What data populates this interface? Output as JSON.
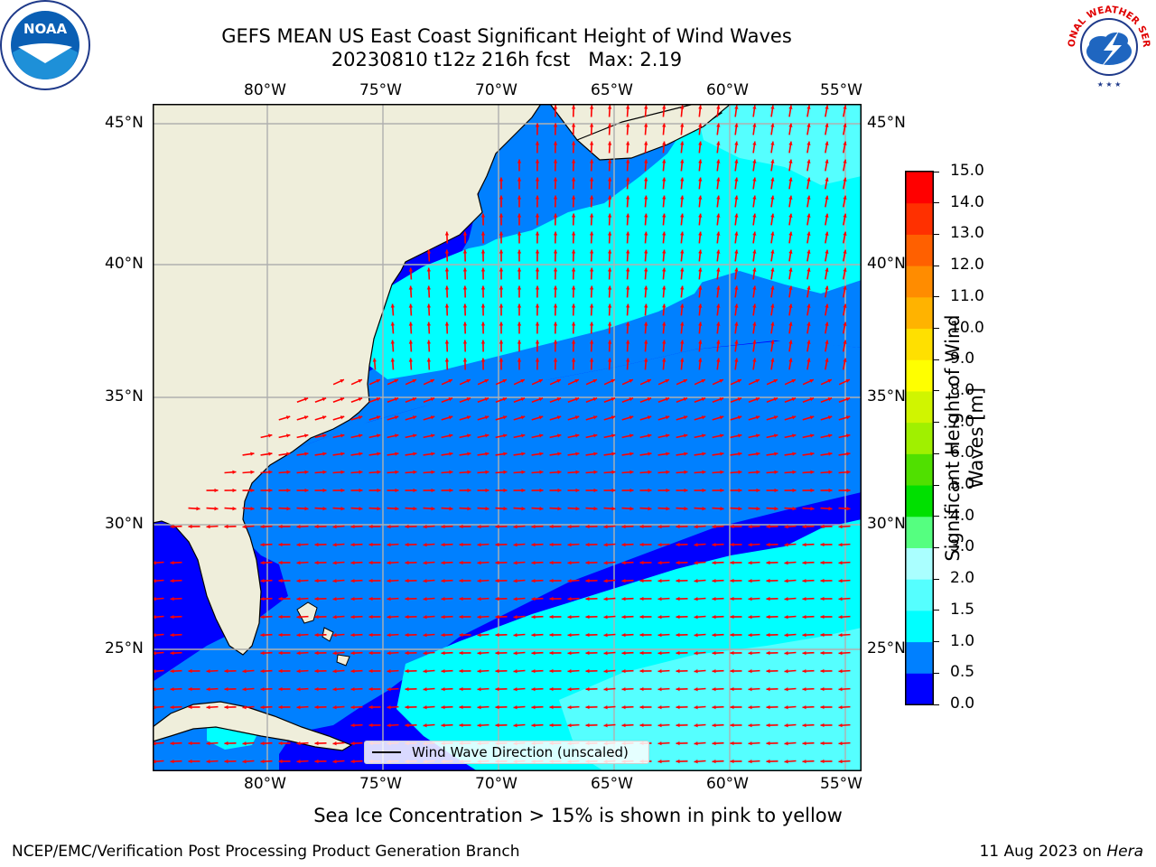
{
  "title_line1": "GEFS MEAN US East Coast Significant Height of Wind Waves",
  "title_line2": "20230810 t12z 216h fcst   Max: 2.19",
  "logos": {
    "left": "NOAA",
    "right": "NATIONAL WEATHER SERVICE"
  },
  "map": {
    "lon_labels": [
      "80°W",
      "75°W",
      "70°W",
      "65°W",
      "60°W",
      "55°W"
    ],
    "lat_labels": [
      "45°N",
      "40°N",
      "35°N",
      "30°N",
      "25°N"
    ],
    "extent": {
      "lon": [
        -85,
        -54.3
      ],
      "lat": [
        20.5,
        46
      ]
    },
    "land_color": "#efeedb",
    "grid_color": "#b0b0b0",
    "arrow_color": "#ff0000",
    "legend_label": "Wind Wave Direction (unscaled)"
  },
  "colorbar": {
    "title": "Significant Height of Wind Waves [m]",
    "ticks": [
      "0.0",
      "0.5",
      "1.0",
      "1.5",
      "2.0",
      "3.0",
      "4.0",
      "5.0",
      "6.0",
      "7.0",
      "8.0",
      "9.0",
      "10.0",
      "11.0",
      "12.0",
      "13.0",
      "14.0",
      "15.0"
    ],
    "colors": [
      "#0000ff",
      "#0080ff",
      "#00ffff",
      "#55ffff",
      "#aaffff",
      "#55ff80",
      "#00e000",
      "#50e000",
      "#a0f000",
      "#d0f500",
      "#ffff00",
      "#ffe000",
      "#ffb300",
      "#ff8c00",
      "#ff6000",
      "#ff3000",
      "#ff0000"
    ]
  },
  "caption": "Sea Ice Concentration > 15% is shown in pink to yellow",
  "credit": "NCEP/EMC/Verification Post Processing Product Generation Branch",
  "stamp_date": "11 Aug 2023 on ",
  "stamp_host": "Hera"
}
